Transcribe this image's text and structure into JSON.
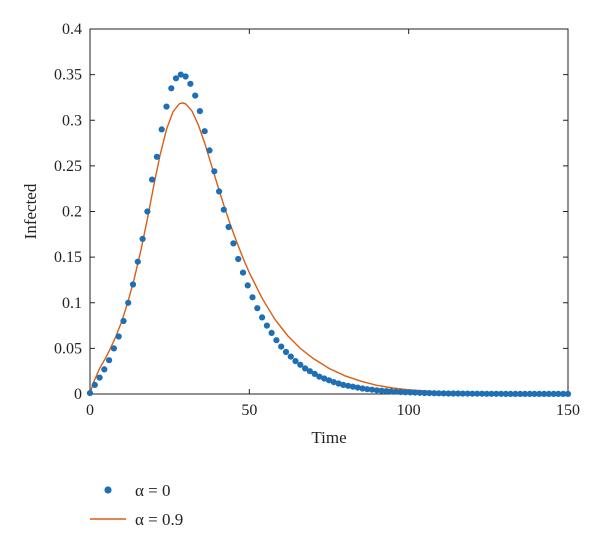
{
  "chart_data": {
    "type": "line",
    "xlabel": "Time",
    "ylabel": "Infected",
    "xlim": [
      0,
      150
    ],
    "ylim": [
      0,
      0.4
    ],
    "xticks": [
      "0",
      "50",
      "100",
      "150"
    ],
    "yticks": [
      "0",
      "0.05",
      "0.1",
      "0.15",
      "0.2",
      "0.25",
      "0.3",
      "0.35",
      "0.4"
    ],
    "grid": false,
    "legend_position": "bottom-left, below axes",
    "series": [
      {
        "name": "α = 0",
        "style": "markers",
        "color": "#1f6fb5",
        "x": [
          0,
          1.5,
          3,
          4.5,
          6,
          7.5,
          9,
          10.5,
          12,
          13.5,
          15,
          16.5,
          18,
          19.5,
          21,
          22.5,
          24,
          25.5,
          27,
          28.5,
          30,
          31.5,
          33,
          34.5,
          36,
          37.5,
          39,
          40.5,
          42,
          43.5,
          45,
          46.5,
          48,
          49.5,
          51,
          52.5,
          54,
          55.5,
          57,
          58.5,
          60,
          61.5,
          63,
          64.5,
          66,
          67.5,
          69,
          70.5,
          72,
          73.5,
          75,
          76.5,
          78,
          79.5,
          81,
          82.5,
          84,
          85.5,
          87,
          88.5,
          90,
          91.5,
          93,
          94.5,
          96,
          97.5,
          99,
          100.5,
          102,
          103.5,
          105,
          106.5,
          108,
          109.5,
          111,
          112.5,
          114,
          115.5,
          117,
          118.5,
          120,
          121.5,
          123,
          124.5,
          126,
          127.5,
          129,
          130.5,
          132,
          133.5,
          135,
          136.5,
          138,
          139.5,
          141,
          142.5,
          144,
          145.5,
          147,
          148.5,
          150
        ],
        "values": [
          0.001,
          0.01,
          0.018,
          0.027,
          0.037,
          0.05,
          0.063,
          0.08,
          0.1,
          0.12,
          0.145,
          0.17,
          0.2,
          0.235,
          0.26,
          0.29,
          0.315,
          0.335,
          0.346,
          0.35,
          0.348,
          0.34,
          0.327,
          0.31,
          0.288,
          0.267,
          0.244,
          0.222,
          0.202,
          0.183,
          0.165,
          0.148,
          0.133,
          0.119,
          0.106,
          0.094,
          0.084,
          0.075,
          0.067,
          0.059,
          0.052,
          0.046,
          0.041,
          0.036,
          0.032,
          0.028,
          0.025,
          0.022,
          0.019,
          0.017,
          0.015,
          0.013,
          0.0115,
          0.01,
          0.009,
          0.008,
          0.007,
          0.006,
          0.0053,
          0.0047,
          0.0041,
          0.0036,
          0.0032,
          0.0028,
          0.0025,
          0.0022,
          0.0019,
          0.0017,
          0.0015,
          0.0013,
          0.0011,
          0.001,
          0.0009,
          0.0008,
          0.0007,
          0.0006,
          0.0005,
          0.0005,
          0.0004,
          0.0004,
          0.0003,
          0.0003,
          0.0003,
          0.0002,
          0.0002,
          0.0002,
          0.0002,
          0.0001,
          0.0001,
          0.0001,
          0.0001,
          0.0001,
          0.0001,
          0.0001,
          0.0001,
          0.0001,
          0.0001,
          0.0001,
          0.0001,
          0.0001,
          0.0001
        ]
      },
      {
        "name": "α = 0.9",
        "style": "line",
        "color": "#d95f14",
        "x": [
          0,
          1,
          2,
          3,
          4,
          5,
          6,
          8,
          10,
          12,
          14,
          16,
          18,
          20,
          22,
          24,
          26,
          28,
          29,
          30,
          32,
          34,
          36,
          38,
          40,
          42,
          44,
          46,
          48,
          50,
          54,
          58,
          62,
          66,
          70,
          75,
          80,
          85,
          90,
          95,
          100,
          110,
          120,
          130,
          140,
          150
        ],
        "values": [
          0.0,
          0.012,
          0.02,
          0.028,
          0.034,
          0.04,
          0.047,
          0.062,
          0.08,
          0.102,
          0.128,
          0.158,
          0.192,
          0.228,
          0.262,
          0.29,
          0.309,
          0.318,
          0.319,
          0.318,
          0.31,
          0.295,
          0.275,
          0.252,
          0.229,
          0.207,
          0.186,
          0.167,
          0.149,
          0.133,
          0.105,
          0.082,
          0.064,
          0.05,
          0.039,
          0.028,
          0.02,
          0.014,
          0.0095,
          0.0066,
          0.0046,
          0.0022,
          0.0011,
          0.0005,
          0.0002,
          0.0001
        ]
      }
    ]
  }
}
